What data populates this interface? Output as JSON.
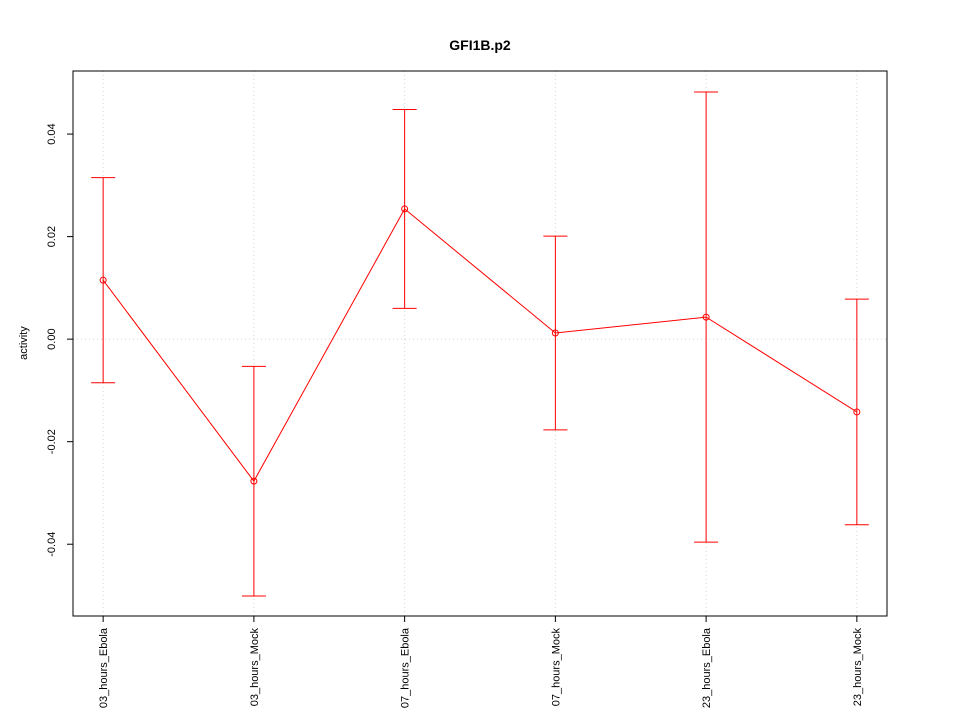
{
  "chart_data": {
    "type": "errorbar-line",
    "title": "GFI1B.p2",
    "y_label": "activity",
    "categories": [
      "03_hours_Ebola",
      "03_hours_Mock",
      "07_hours_Ebola",
      "07_hours_Mock",
      "23_hours_Ebola",
      "23_hours_Mock"
    ],
    "values": [
      0.0115,
      -0.0277,
      0.0254,
      0.0012,
      0.0043,
      -0.0142
    ],
    "errors": [
      0.02,
      0.0224,
      0.0194,
      0.0189,
      0.0439,
      0.022
    ],
    "color": "#ff0000",
    "ylim": [
      -0.054,
      0.0523
    ],
    "yticks": [
      -0.04,
      -0.02,
      {
        "value": 0,
        "label": "0.00"
      },
      0.02,
      0.04
    ],
    "grid": "x",
    "reference_line": 0
  }
}
